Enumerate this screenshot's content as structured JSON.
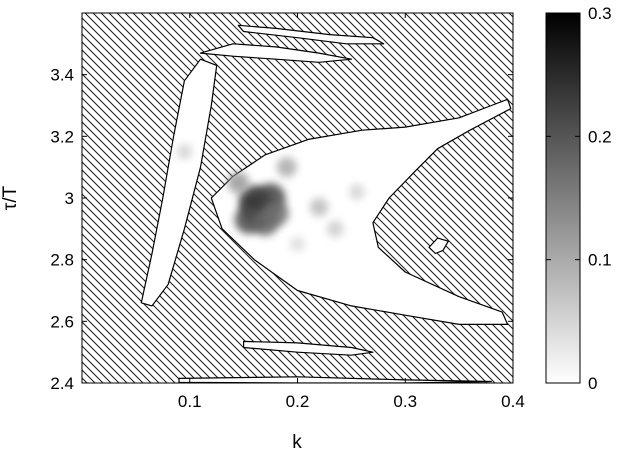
{
  "chart_data": {
    "type": "heatmap",
    "xlabel": "k",
    "ylabel": "τ/T",
    "xlim": [
      0.0,
      0.4
    ],
    "ylim": [
      2.4,
      3.6
    ],
    "xticks": [
      "0.1",
      "0.2",
      "0.3",
      "0.4"
    ],
    "yticks": [
      "2.4",
      "2.6",
      "2.8",
      "3",
      "3.2",
      "3.4"
    ],
    "background": "hatched (diagonal lines)",
    "colorbar": {
      "range": [
        0,
        0.3
      ],
      "ticks": [
        "0",
        "0.1",
        "0.2",
        "0.3"
      ],
      "colormap": "gray (white = 0, black = 0.3)"
    },
    "regions": [
      {
        "name": "main-crescent",
        "value": 0.0,
        "outline": [
          [
            0.12,
            3.0
          ],
          [
            0.14,
            3.07
          ],
          [
            0.17,
            3.14
          ],
          [
            0.21,
            3.19
          ],
          [
            0.26,
            3.22
          ],
          [
            0.3,
            3.23
          ],
          [
            0.35,
            3.26
          ],
          [
            0.38,
            3.3
          ],
          [
            0.395,
            3.32
          ],
          [
            0.398,
            3.29
          ],
          [
            0.36,
            3.22
          ],
          [
            0.33,
            3.16
          ],
          [
            0.31,
            3.09
          ],
          [
            0.285,
            3.0
          ],
          [
            0.27,
            2.92
          ],
          [
            0.275,
            2.84
          ],
          [
            0.3,
            2.76
          ],
          [
            0.35,
            2.68
          ],
          [
            0.39,
            2.63
          ],
          [
            0.395,
            2.59
          ],
          [
            0.35,
            2.59
          ],
          [
            0.3,
            2.62
          ],
          [
            0.25,
            2.65
          ],
          [
            0.2,
            2.7
          ],
          [
            0.16,
            2.8
          ],
          [
            0.13,
            2.9
          ]
        ]
      },
      {
        "name": "diagonal-strip",
        "value": 0.0,
        "outline": [
          [
            0.055,
            2.66
          ],
          [
            0.065,
            2.82
          ],
          [
            0.075,
            3.0
          ],
          [
            0.085,
            3.2
          ],
          [
            0.095,
            3.38
          ],
          [
            0.11,
            3.45
          ],
          [
            0.125,
            3.43
          ],
          [
            0.12,
            3.3
          ],
          [
            0.11,
            3.1
          ],
          [
            0.095,
            2.9
          ],
          [
            0.08,
            2.72
          ],
          [
            0.065,
            2.65
          ]
        ]
      },
      {
        "name": "top-band-upper",
        "value": 0.0,
        "outline": [
          [
            0.145,
            3.56
          ],
          [
            0.18,
            3.55
          ],
          [
            0.23,
            3.53
          ],
          [
            0.27,
            3.52
          ],
          [
            0.28,
            3.5
          ],
          [
            0.245,
            3.5
          ],
          [
            0.2,
            3.52
          ],
          [
            0.15,
            3.54
          ]
        ]
      },
      {
        "name": "top-band-lower",
        "value": 0.0,
        "outline": [
          [
            0.11,
            3.47
          ],
          [
            0.14,
            3.5
          ],
          [
            0.18,
            3.49
          ],
          [
            0.22,
            3.47
          ],
          [
            0.25,
            3.45
          ],
          [
            0.22,
            3.44
          ],
          [
            0.18,
            3.45
          ],
          [
            0.14,
            3.46
          ]
        ]
      },
      {
        "name": "bottom-band",
        "value": 0.0,
        "outline": [
          [
            0.15,
            2.535
          ],
          [
            0.2,
            2.53
          ],
          [
            0.25,
            2.515
          ],
          [
            0.27,
            2.5
          ],
          [
            0.25,
            2.49
          ],
          [
            0.2,
            2.5
          ],
          [
            0.15,
            2.515
          ]
        ]
      },
      {
        "name": "bottom-edge-band",
        "value": 0.0,
        "outline": [
          [
            0.09,
            2.415
          ],
          [
            0.2,
            2.42
          ],
          [
            0.3,
            2.41
          ],
          [
            0.38,
            2.405
          ],
          [
            0.3,
            2.4
          ],
          [
            0.2,
            2.4
          ],
          [
            0.09,
            2.402
          ]
        ]
      },
      {
        "name": "right-blob",
        "value": 0.0,
        "outline": [
          [
            0.322,
            2.84
          ],
          [
            0.33,
            2.87
          ],
          [
            0.34,
            2.86
          ],
          [
            0.335,
            2.83
          ],
          [
            0.328,
            2.82
          ]
        ]
      }
    ],
    "hotspots": [
      {
        "k": 0.165,
        "tau": 2.96,
        "value": 0.26
      },
      {
        "k": 0.16,
        "tau": 2.99,
        "value": 0.24
      },
      {
        "k": 0.175,
        "tau": 3.0,
        "value": 0.22
      },
      {
        "k": 0.155,
        "tau": 2.93,
        "value": 0.21
      },
      {
        "k": 0.17,
        "tau": 2.92,
        "value": 0.18
      },
      {
        "k": 0.18,
        "tau": 2.95,
        "value": 0.17
      },
      {
        "k": 0.145,
        "tau": 3.05,
        "value": 0.12
      },
      {
        "k": 0.19,
        "tau": 3.1,
        "value": 0.1
      },
      {
        "k": 0.22,
        "tau": 2.97,
        "value": 0.08
      },
      {
        "k": 0.235,
        "tau": 2.9,
        "value": 0.06
      },
      {
        "k": 0.255,
        "tau": 3.02,
        "value": 0.05
      },
      {
        "k": 0.2,
        "tau": 2.85,
        "value": 0.04
      },
      {
        "k": 0.095,
        "tau": 3.15,
        "value": 0.05
      }
    ]
  }
}
